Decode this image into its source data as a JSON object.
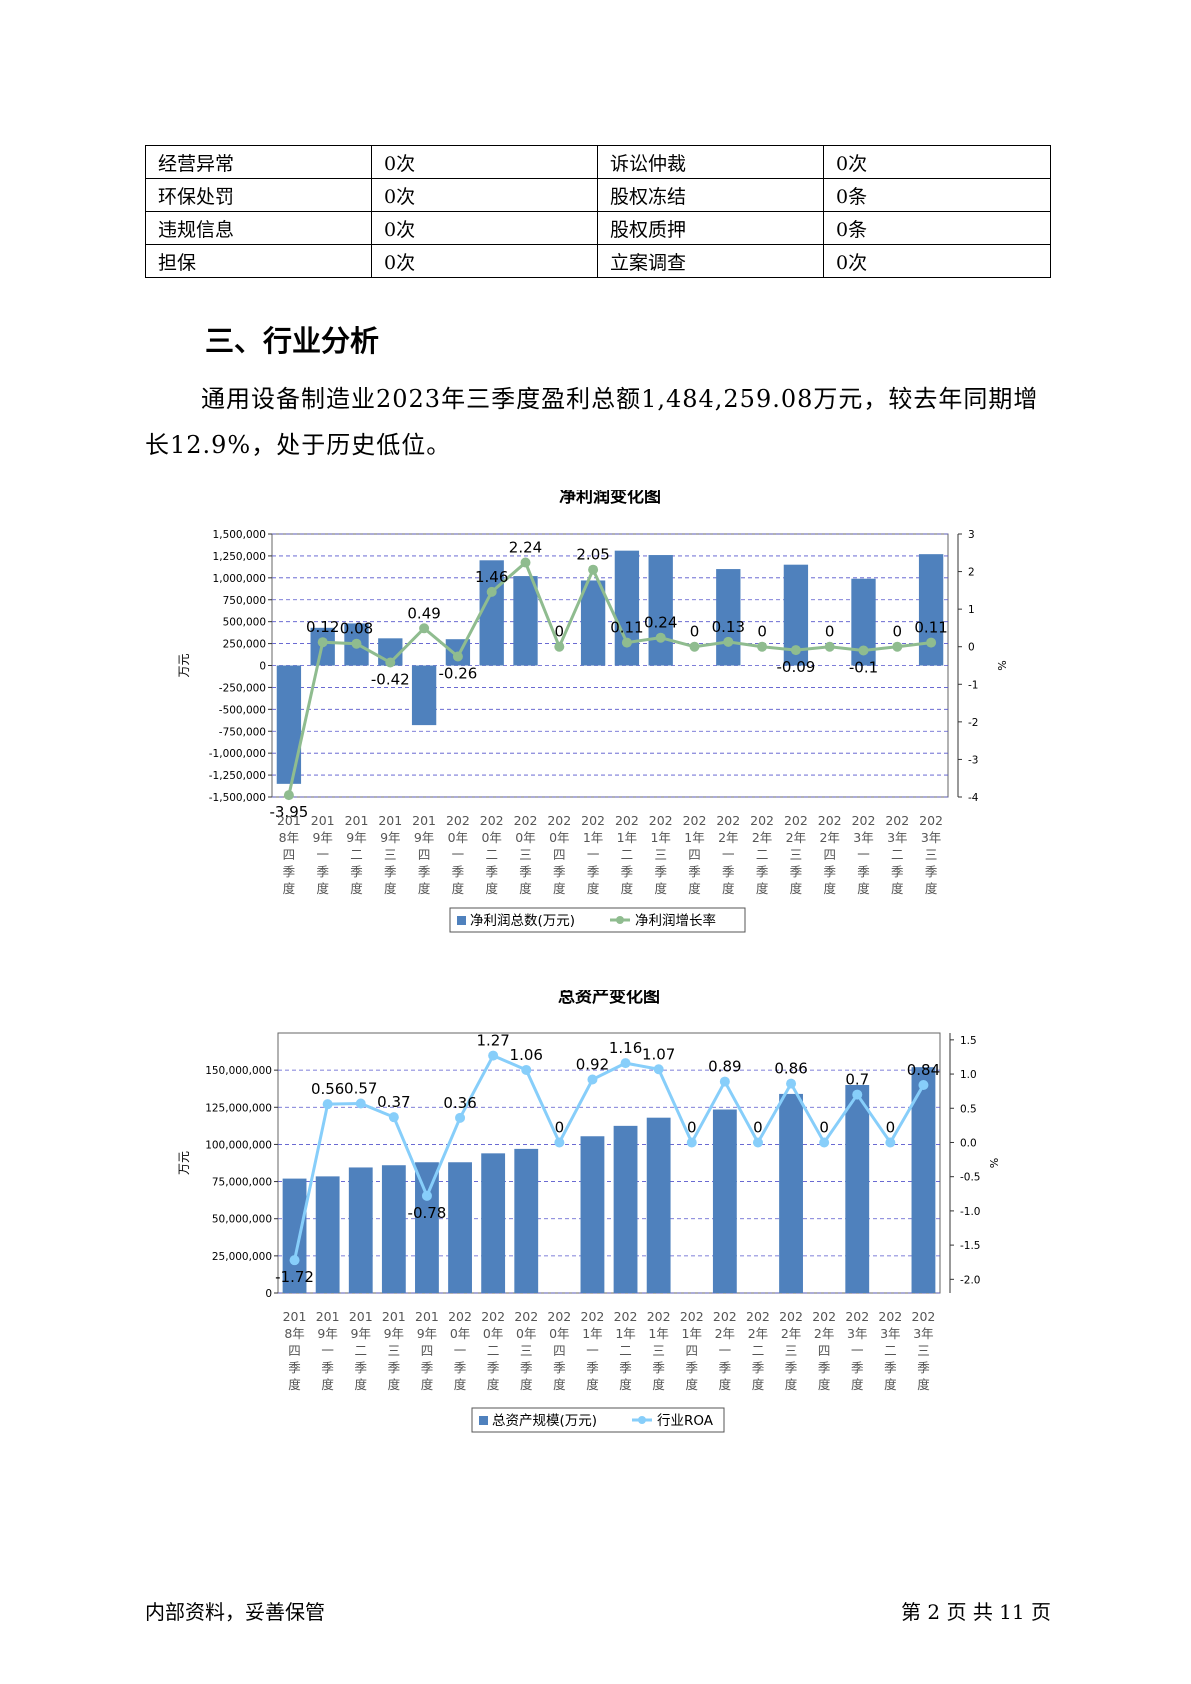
{
  "risk_table": {
    "rows": [
      [
        "经营异常",
        "0次",
        "诉讼仲裁",
        "0次"
      ],
      [
        "环保处罚",
        "0次",
        "股权冻结",
        "0条"
      ],
      [
        "违规信息",
        "0次",
        "股权质押",
        "0条"
      ],
      [
        "担保",
        "0次",
        "立案调查",
        "0次"
      ]
    ]
  },
  "section": {
    "title": "三、行业分析",
    "paragraph": "通用设备制造业2023年三季度盈利总额1,484,259.08万元，较去年同期增长12.9%，处于历史低位。"
  },
  "charts": {
    "net_profit": {
      "title": "净利润变化图",
      "left_unit": "万元",
      "right_unit": "%",
      "legend_bar": "净利润总数(万元)",
      "legend_line": "净利润增长率",
      "bar_color": "#4f81bd",
      "line_color": "#8fbc8f"
    },
    "total_assets": {
      "title": "总资产变化图",
      "left_unit": "万元",
      "right_unit": "%",
      "legend_bar": "总资产规模(万元)",
      "legend_line": "行业ROA",
      "bar_color": "#4f81bd",
      "line_color": "#87cefa"
    }
  },
  "chart_data": [
    {
      "type": "bar",
      "title": "净利润变化图",
      "categories": [
        "2018年四季度",
        "2019年一季度",
        "2019年二季度",
        "2019年三季度",
        "2019年四季度",
        "2020年一季度",
        "2020年二季度",
        "2020年三季度",
        "2020年四季度",
        "2021年一季度",
        "2021年二季度",
        "2021年三季度",
        "2021年四季度",
        "2022年一季度",
        "2022年二季度",
        "2022年三季度",
        "2022年四季度",
        "2023年一季度",
        "2023年二季度",
        "2023年三季度"
      ],
      "category_lines": [
        [
          "201",
          "8年",
          "四",
          "季",
          "度"
        ],
        [
          "201",
          "9年",
          "一",
          "季",
          "度"
        ],
        [
          "201",
          "9年",
          "二",
          "季",
          "度"
        ],
        [
          "201",
          "9年",
          "三",
          "季",
          "度"
        ],
        [
          "201",
          "9年",
          "四",
          "季",
          "度"
        ],
        [
          "202",
          "0年",
          "一",
          "季",
          "度"
        ],
        [
          "202",
          "0年",
          "二",
          "季",
          "度"
        ],
        [
          "202",
          "0年",
          "三",
          "季",
          "度"
        ],
        [
          "202",
          "0年",
          "四",
          "季",
          "度"
        ],
        [
          "202",
          "1年",
          "一",
          "季",
          "度"
        ],
        [
          "202",
          "1年",
          "二",
          "季",
          "度"
        ],
        [
          "202",
          "1年",
          "三",
          "季",
          "度"
        ],
        [
          "202",
          "1年",
          "四",
          "季",
          "度"
        ],
        [
          "202",
          "2年",
          "一",
          "季",
          "度"
        ],
        [
          "202",
          "2年",
          "二",
          "季",
          "度"
        ],
        [
          "202",
          "2年",
          "三",
          "季",
          "度"
        ],
        [
          "202",
          "2年",
          "四",
          "季",
          "度"
        ],
        [
          "202",
          "3年",
          "一",
          "季",
          "度"
        ],
        [
          "202",
          "3年",
          "二",
          "季",
          "度"
        ],
        [
          "202",
          "3年",
          "三",
          "季",
          "度"
        ]
      ],
      "series": [
        {
          "name": "净利润总数(万元)",
          "axis": "left",
          "kind": "bar",
          "values": [
            -1350000,
            430000,
            480000,
            310000,
            -680000,
            300000,
            1200000,
            1020000,
            null,
            970000,
            1310000,
            1260000,
            null,
            1100000,
            null,
            1150000,
            null,
            990000,
            null,
            1270000
          ]
        },
        {
          "name": "净利润增长率",
          "axis": "right",
          "kind": "line",
          "values": [
            -3.95,
            0.12,
            0.08,
            -0.42,
            0.49,
            -0.26,
            1.46,
            2.24,
            0,
            2.05,
            0.11,
            0.24,
            0,
            0.13,
            0,
            -0.09,
            0,
            -0.1,
            0,
            0.11
          ]
        }
      ],
      "ylim_left": [
        -1500000,
        1500000
      ],
      "yticks_left": [
        -1500000,
        -1250000,
        -1000000,
        -750000,
        -500000,
        -250000,
        0,
        250000,
        500000,
        750000,
        1000000,
        1250000,
        1500000
      ],
      "ylim_right": [
        -4,
        3
      ],
      "yticks_right": [
        -4,
        -3,
        -2,
        -1,
        0,
        1,
        2,
        3
      ],
      "ylabel": "万元",
      "ylabel_right": "%",
      "grid": true,
      "legend": "bottom"
    },
    {
      "type": "bar",
      "title": "总资产变化图",
      "categories": [
        "2018年四季度",
        "2019年一季度",
        "2019年二季度",
        "2019年三季度",
        "2019年四季度",
        "2020年一季度",
        "2020年二季度",
        "2020年三季度",
        "2020年四季度",
        "2021年一季度",
        "2021年二季度",
        "2021年三季度",
        "2021年四季度",
        "2022年一季度",
        "2022年二季度",
        "2022年三季度",
        "2022年四季度",
        "2023年一季度",
        "2023年二季度",
        "2023年三季度"
      ],
      "category_lines": [
        [
          "201",
          "8年",
          "四",
          "季",
          "度"
        ],
        [
          "201",
          "9年",
          "一",
          "季",
          "度"
        ],
        [
          "201",
          "9年",
          "二",
          "季",
          "度"
        ],
        [
          "201",
          "9年",
          "三",
          "季",
          "度"
        ],
        [
          "201",
          "9年",
          "四",
          "季",
          "度"
        ],
        [
          "202",
          "0年",
          "一",
          "季",
          "度"
        ],
        [
          "202",
          "0年",
          "二",
          "季",
          "度"
        ],
        [
          "202",
          "0年",
          "三",
          "季",
          "度"
        ],
        [
          "202",
          "0年",
          "四",
          "季",
          "度"
        ],
        [
          "202",
          "1年",
          "一",
          "季",
          "度"
        ],
        [
          "202",
          "1年",
          "二",
          "季",
          "度"
        ],
        [
          "202",
          "1年",
          "三",
          "季",
          "度"
        ],
        [
          "202",
          "1年",
          "四",
          "季",
          "度"
        ],
        [
          "202",
          "2年",
          "一",
          "季",
          "度"
        ],
        [
          "202",
          "2年",
          "二",
          "季",
          "度"
        ],
        [
          "202",
          "2年",
          "三",
          "季",
          "度"
        ],
        [
          "202",
          "2年",
          "四",
          "季",
          "度"
        ],
        [
          "202",
          "3年",
          "一",
          "季",
          "度"
        ],
        [
          "202",
          "3年",
          "二",
          "季",
          "度"
        ],
        [
          "202",
          "3年",
          "三",
          "季",
          "度"
        ]
      ],
      "series": [
        {
          "name": "总资产规模(万元)",
          "axis": "left",
          "kind": "bar",
          "values": [
            77000000,
            78500000,
            84500000,
            86000000,
            88000000,
            88000000,
            94000000,
            97000000,
            null,
            105500000,
            112500000,
            118000000,
            null,
            123500000,
            null,
            134000000,
            null,
            140000000,
            null,
            152000000
          ]
        },
        {
          "name": "行业ROA",
          "axis": "right",
          "kind": "line",
          "values": [
            -1.72,
            0.56,
            0.57,
            0.37,
            -0.78,
            0.36,
            1.27,
            1.06,
            0,
            0.92,
            1.16,
            1.07,
            0,
            0.89,
            0,
            0.86,
            0,
            0.7,
            0,
            0.84
          ]
        }
      ],
      "ylim_left": [
        0,
        175000000
      ],
      "yticks_left": [
        0,
        25000000,
        50000000,
        75000000,
        100000000,
        125000000,
        150000000
      ],
      "ylim_right": [
        -2.2,
        1.6
      ],
      "yticks_right": [
        -2.0,
        -1.5,
        -1.0,
        -0.5,
        0.0,
        0.5,
        1.0,
        1.5
      ],
      "ylabel": "万元",
      "ylabel_right": "%",
      "grid": true,
      "legend": "bottom"
    }
  ],
  "footer": {
    "left": "内部资料，妥善保管",
    "right": "第 2 页   共 11 页"
  }
}
